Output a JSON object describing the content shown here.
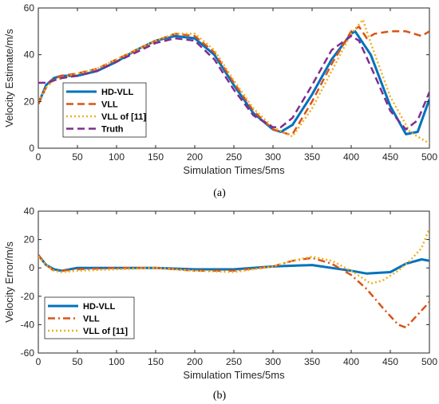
{
  "chart_data": [
    {
      "type": "line",
      "panel_label": "(a)",
      "xlabel": "Simulation Times/5ms",
      "ylabel": "Velocity Estimate/m/s",
      "xlim": [
        0,
        500
      ],
      "ylim": [
        0,
        60
      ],
      "xticks": [
        0,
        50,
        100,
        150,
        200,
        250,
        300,
        350,
        400,
        450,
        500
      ],
      "yticks": [
        0,
        20,
        40,
        60
      ],
      "grid": false,
      "legend_position": "bottom-left",
      "series": [
        {
          "name": "HD-VLL",
          "color": "#0072BD",
          "style": "solid",
          "x": [
            0,
            10,
            20,
            30,
            50,
            75,
            100,
            125,
            150,
            175,
            200,
            225,
            250,
            275,
            300,
            310,
            325,
            350,
            375,
            400,
            405,
            425,
            450,
            470,
            485,
            500
          ],
          "y": [
            19,
            27,
            30,
            31,
            31,
            33,
            37,
            42,
            46,
            48,
            47,
            40,
            27,
            15,
            8,
            7,
            10,
            23,
            38,
            49,
            50,
            40,
            18,
            6,
            7,
            21
          ]
        },
        {
          "name": "VLL",
          "color": "#D95319",
          "style": "dashed",
          "x": [
            0,
            10,
            20,
            30,
            50,
            75,
            100,
            125,
            150,
            175,
            200,
            225,
            250,
            275,
            300,
            320,
            325,
            350,
            375,
            400,
            410,
            420,
            430,
            450,
            470,
            490,
            500
          ],
          "y": [
            19,
            26,
            30,
            31,
            32,
            34,
            38,
            42,
            46,
            49,
            48,
            41,
            28,
            16,
            8,
            6,
            6,
            20,
            36,
            50,
            52,
            47,
            49,
            50,
            50,
            48,
            50
          ]
        },
        {
          "name": "VLL of [11]",
          "color": "#EDB120",
          "style": "dotted",
          "x": [
            0,
            10,
            20,
            30,
            50,
            75,
            100,
            125,
            150,
            175,
            200,
            225,
            250,
            275,
            300,
            325,
            350,
            375,
            400,
            415,
            425,
            450,
            475,
            490,
            500
          ],
          "y": [
            20,
            26,
            29,
            30,
            32,
            34,
            38,
            42,
            46,
            49,
            49,
            42,
            29,
            17,
            9,
            5,
            17,
            33,
            49,
            55,
            45,
            22,
            7,
            4,
            2
          ]
        },
        {
          "name": "Truth",
          "color": "#7E2F8E",
          "style": "dashed",
          "x": [
            0,
            10,
            20,
            30,
            50,
            75,
            100,
            125,
            150,
            175,
            200,
            225,
            250,
            275,
            300,
            310,
            325,
            350,
            375,
            400,
            410,
            425,
            450,
            470,
            485,
            500
          ],
          "y": [
            28,
            28,
            29,
            30,
            31,
            33,
            37,
            41,
            45,
            47,
            46,
            38,
            25,
            14,
            9,
            9,
            13,
            27,
            42,
            48,
            46,
            35,
            16,
            8,
            12,
            24
          ]
        }
      ]
    },
    {
      "type": "line",
      "panel_label": "(b)",
      "xlabel": "Simulation Times/5ms",
      "ylabel": "Velocity Error/m/s",
      "xlim": [
        0,
        500
      ],
      "ylim": [
        -60,
        40
      ],
      "xticks": [
        0,
        50,
        100,
        150,
        200,
        250,
        300,
        350,
        400,
        450,
        500
      ],
      "yticks": [
        -60,
        -40,
        -20,
        0,
        20,
        40
      ],
      "grid": false,
      "legend_position": "bottom-left",
      "series": [
        {
          "name": "HD-VLL",
          "color": "#0072BD",
          "style": "solid",
          "x": [
            0,
            10,
            20,
            30,
            50,
            100,
            150,
            200,
            250,
            300,
            350,
            400,
            420,
            450,
            470,
            490,
            500
          ],
          "y": [
            9,
            2,
            -1,
            -2,
            0,
            0,
            0,
            -1,
            -1,
            1,
            2,
            -2,
            -4,
            -3,
            3,
            6,
            5
          ]
        },
        {
          "name": "VLL",
          "color": "#D95319",
          "style": "dashdot",
          "x": [
            0,
            10,
            20,
            30,
            50,
            100,
            150,
            200,
            250,
            300,
            325,
            350,
            375,
            400,
            420,
            440,
            460,
            470,
            480,
            500
          ],
          "y": [
            9,
            2,
            -2,
            -2,
            -1,
            0,
            0,
            -2,
            -2,
            1,
            5,
            7,
            3,
            -5,
            -15,
            -28,
            -40,
            -42,
            -36,
            -24
          ]
        },
        {
          "name": "VLL of [11]",
          "color": "#EDB120",
          "style": "dotted",
          "x": [
            0,
            10,
            20,
            30,
            50,
            100,
            150,
            200,
            250,
            300,
            325,
            350,
            375,
            400,
            425,
            440,
            460,
            475,
            490,
            500
          ],
          "y": [
            8,
            2,
            -2,
            -3,
            -2,
            -1,
            0,
            -2,
            -3,
            1,
            5,
            8,
            5,
            -2,
            -11,
            -9,
            -2,
            5,
            14,
            28
          ]
        }
      ]
    }
  ]
}
